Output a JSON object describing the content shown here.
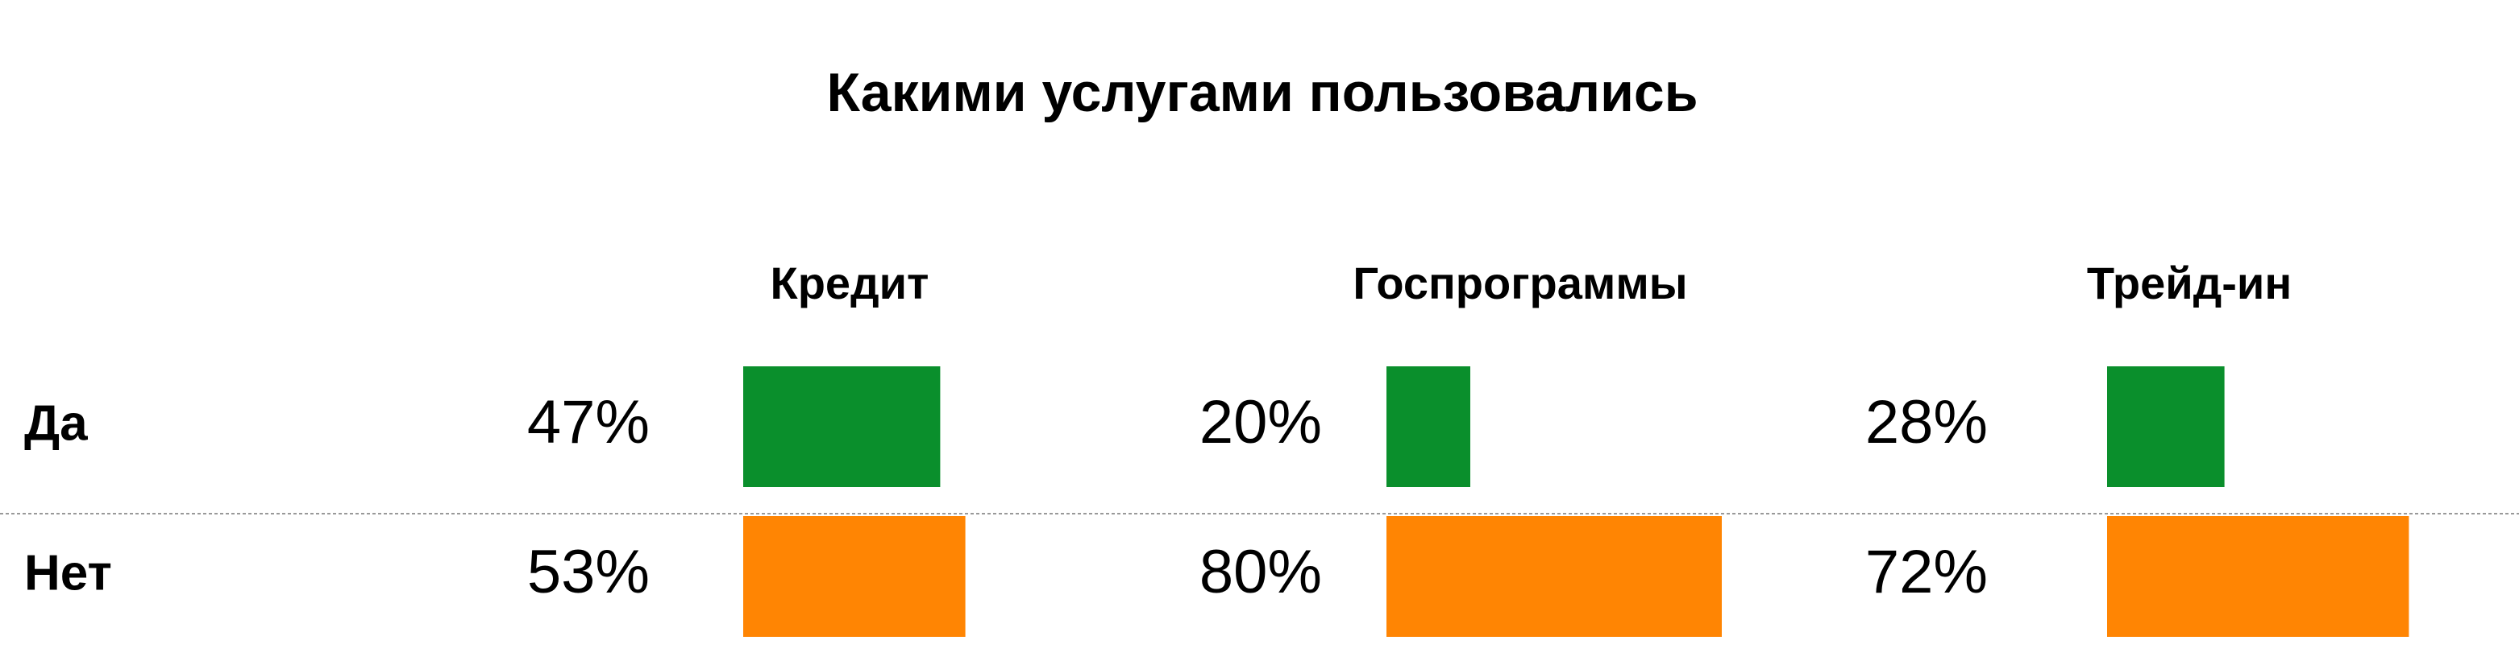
{
  "chart_data": {
    "type": "bar",
    "title": "Какими услугами пользовались",
    "categories": [
      "Да",
      "Нет"
    ],
    "colors": [
      "#0a8f2c",
      "#ff8503"
    ],
    "series": [
      {
        "name": "Кредит",
        "values": [
          47,
          53
        ],
        "value_labels": [
          "47%",
          "53%"
        ]
      },
      {
        "name": "Госпрограммы",
        "values": [
          20,
          80
        ],
        "value_labels": [
          "20%",
          "80%"
        ]
      },
      {
        "name": "Трейд-ин",
        "values": [
          28,
          72
        ],
        "value_labels": [
          "28%",
          "72%"
        ]
      }
    ]
  }
}
